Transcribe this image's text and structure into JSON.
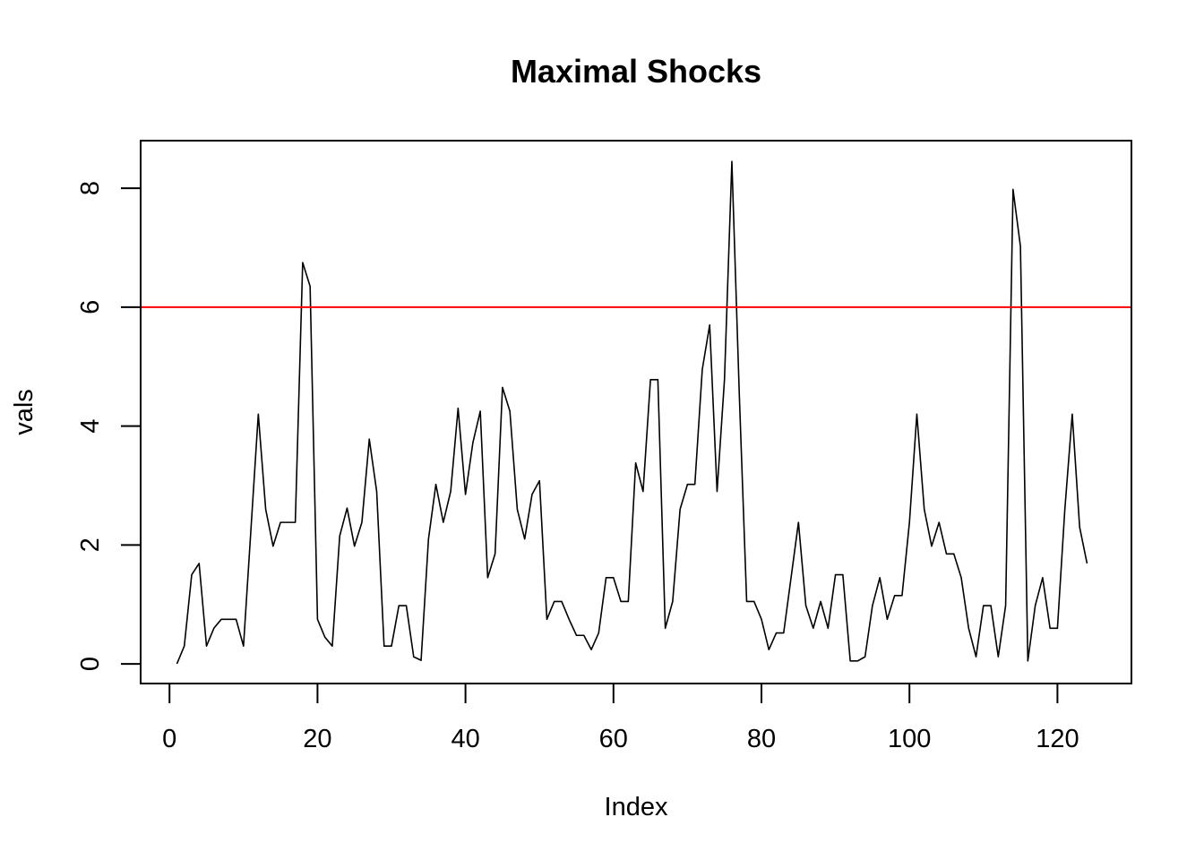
{
  "chart_data": {
    "type": "line",
    "title": "Maximal Shocks",
    "xlabel": "Index",
    "ylabel": "vals",
    "xlim": [
      -3.9,
      130
    ],
    "ylim": [
      -0.33,
      8.8
    ],
    "xticks": [
      0,
      20,
      40,
      60,
      80,
      100,
      120
    ],
    "yticks": [
      0,
      2,
      4,
      6,
      8
    ],
    "series_color": "#000000",
    "threshold": {
      "value": 6,
      "color": "#ff0000"
    },
    "grid": false,
    "x": [
      1,
      2,
      3,
      4,
      5,
      6,
      7,
      8,
      9,
      10,
      11,
      12,
      13,
      14,
      15,
      16,
      17,
      18,
      19,
      20,
      21,
      22,
      23,
      24,
      25,
      26,
      27,
      28,
      29,
      30,
      31,
      32,
      33,
      34,
      35,
      36,
      37,
      38,
      39,
      40,
      41,
      42,
      43,
      44,
      45,
      46,
      47,
      48,
      49,
      50,
      51,
      52,
      53,
      54,
      55,
      56,
      57,
      58,
      59,
      60,
      61,
      62,
      63,
      64,
      65,
      66,
      67,
      68,
      69,
      70,
      71,
      72,
      73,
      74,
      75,
      76,
      77,
      78,
      79,
      80,
      81,
      82,
      83,
      84,
      85,
      86,
      87,
      88,
      89,
      90,
      91,
      92,
      93,
      94,
      95,
      96,
      97,
      98,
      99,
      100,
      101,
      102,
      103,
      104,
      105,
      106,
      107,
      108,
      109,
      110,
      111,
      112,
      113,
      114,
      115,
      116,
      117,
      118,
      119,
      120,
      121,
      122,
      123,
      124
    ],
    "values": [
      0.0,
      0.3,
      1.5,
      1.69,
      0.3,
      0.6,
      0.75,
      0.75,
      0.75,
      0.3,
      2.25,
      4.2,
      2.6,
      1.98,
      2.38,
      2.38,
      2.38,
      6.75,
      6.35,
      0.75,
      0.45,
      0.3,
      2.15,
      2.62,
      1.98,
      2.38,
      3.78,
      2.9,
      0.3,
      0.3,
      0.98,
      0.98,
      0.12,
      0.06,
      2.1,
      3.02,
      2.38,
      2.9,
      4.3,
      2.85,
      3.72,
      4.25,
      1.45,
      1.85,
      4.65,
      4.25,
      2.6,
      2.1,
      2.85,
      3.08,
      0.75,
      1.05,
      1.05,
      0.75,
      0.48,
      0.48,
      0.24,
      0.52,
      1.45,
      1.45,
      1.05,
      1.05,
      3.38,
      2.9,
      4.78,
      4.78,
      0.6,
      1.05,
      2.6,
      3.02,
      3.02,
      4.95,
      5.7,
      2.9,
      4.78,
      8.45,
      4.55,
      1.05,
      1.05,
      0.75,
      0.24,
      0.52,
      0.52,
      1.45,
      2.38,
      0.98,
      0.6,
      1.05,
      0.6,
      1.5,
      1.5,
      0.05,
      0.05,
      0.12,
      0.98,
      1.45,
      0.75,
      1.15,
      1.15,
      2.38,
      4.2,
      2.6,
      1.98,
      2.38,
      1.85,
      1.85,
      1.45,
      0.6,
      0.12,
      0.98,
      0.98,
      0.12,
      0.98,
      7.98,
      7.02,
      0.05,
      0.98,
      1.45,
      0.6,
      0.6,
      2.6,
      4.2,
      2.3,
      1.69
    ]
  }
}
